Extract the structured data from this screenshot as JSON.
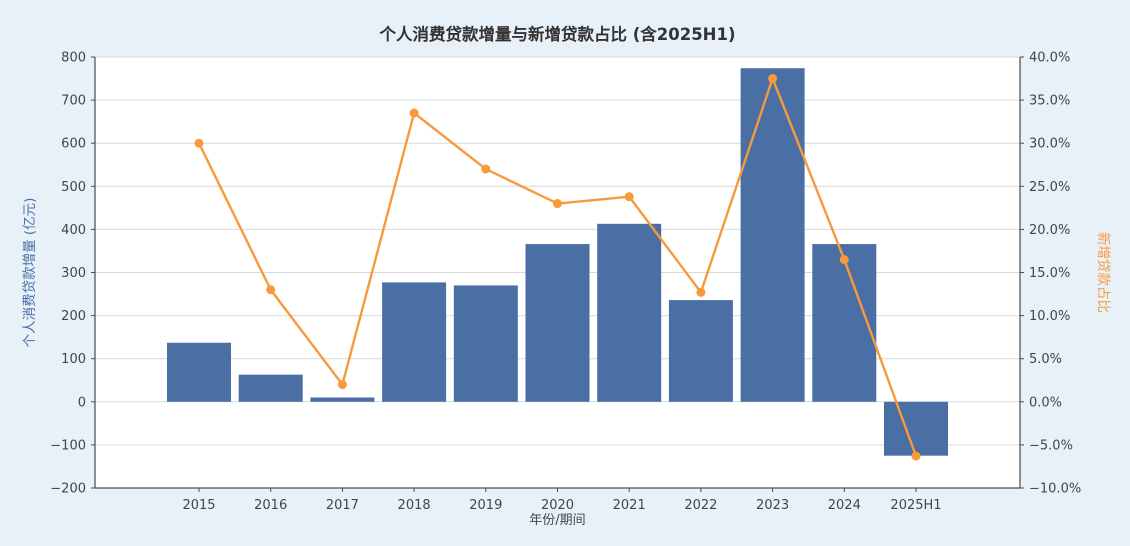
{
  "chart_data": {
    "type": "bar",
    "title": "个人消费贷款增量与新增贷款占比 (含2025H1)",
    "xlabel": "年份/期间",
    "ylabel_left": "个人消费贷款增量 (亿元)",
    "ylabel_right": "新增贷款占比",
    "categories": [
      "2015",
      "2016",
      "2017",
      "2018",
      "2019",
      "2020",
      "2021",
      "2022",
      "2023",
      "2024",
      "2025H1"
    ],
    "series": [
      {
        "name": "个人消费贷款增量",
        "type": "bar",
        "axis": "left",
        "values": [
          137,
          63,
          10,
          277,
          270,
          366,
          413,
          236,
          774,
          366,
          -125
        ]
      },
      {
        "name": "新增贷款占比",
        "type": "line",
        "axis": "right",
        "values": [
          30.0,
          13.0,
          2.0,
          33.5,
          27.0,
          23.0,
          23.8,
          12.7,
          37.5,
          16.5,
          -6.3
        ]
      }
    ],
    "left_axis": {
      "min": -200,
      "max": 800,
      "step": 100,
      "values": [
        -200,
        -100,
        0,
        100,
        200,
        300,
        400,
        500,
        600,
        700,
        800
      ],
      "labels": [
        "−200",
        "−100",
        "0",
        "100",
        "200",
        "300",
        "400",
        "500",
        "600",
        "700",
        "800"
      ]
    },
    "right_axis": {
      "min": -10,
      "max": 40,
      "step": 5,
      "values": [
        -10,
        -5,
        0,
        5,
        10,
        15,
        20,
        25,
        30,
        35,
        40
      ],
      "labels": [
        "−10.0%",
        "−5.0%",
        "0.0%",
        "5.0%",
        "10.0%",
        "15.0%",
        "20.0%",
        "25.0%",
        "30.0%",
        "35.0%",
        "40.0%"
      ]
    },
    "grid": true,
    "legend": "none"
  },
  "colors": {
    "background": "#e8f1f8",
    "plot_background": "#ffffff",
    "bar": "#4a6fa5",
    "line": "#f79a3b",
    "grid": "#d9d9d9",
    "spine": "#4a4a4a",
    "title_text": "#333333",
    "tick_text": "#3b4754"
  }
}
